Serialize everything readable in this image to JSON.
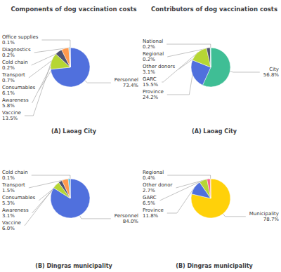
{
  "chart_data": [
    {
      "type": "pie",
      "title": "Components of dog vaccination costs",
      "subtitle": "(A) Laoag City",
      "categories": [
        "Personnel",
        "Vaccine",
        "Awareness",
        "Consumables",
        "Transport",
        "Cold chain",
        "Diagnostics",
        "Office supplies"
      ],
      "values": [
        73.4,
        13.5,
        5.8,
        6.1,
        0.7,
        0.2,
        0.2,
        0.1
      ],
      "value_labels": [
        "73.4%",
        "13.5%",
        "5.8%",
        "6.1%",
        "0.7%",
        "0.2%",
        "0.2%",
        "0.1%"
      ]
    },
    {
      "type": "pie",
      "title": "Contributors of dog vaccination costs",
      "subtitle": "(A) Laoag City",
      "categories": [
        "City",
        "Province",
        "GARC",
        "Other donors",
        "Regional",
        "National"
      ],
      "values": [
        56.8,
        24.2,
        15.5,
        3.1,
        0.2,
        0.2
      ],
      "value_labels": [
        "56.8%",
        "24.2%",
        "15.5%",
        "3.1%",
        "0.2%",
        "0.2%"
      ]
    },
    {
      "type": "pie",
      "subtitle": "(B) Dingras municipality",
      "categories": [
        "Personnel",
        "Vaccine",
        "Awareness",
        "Consumables",
        "Transport",
        "Cold chain"
      ],
      "values": [
        84.0,
        6.0,
        3.1,
        5.3,
        1.5,
        0.1
      ],
      "value_labels": [
        "84.0%",
        "6.0%",
        "3.1%",
        "5.3%",
        "1.5%",
        "0.1%"
      ]
    },
    {
      "type": "pie",
      "subtitle": "(B) Dingras municipality",
      "categories": [
        "Municipality",
        "Province",
        "GARC",
        "Other donor",
        "Regional"
      ],
      "values": [
        78.7,
        11.8,
        6.5,
        2.7,
        0.4
      ],
      "value_labels": [
        "78.7%",
        "11.8%",
        "6.5%",
        "2.7%",
        "0.4%"
      ]
    }
  ]
}
